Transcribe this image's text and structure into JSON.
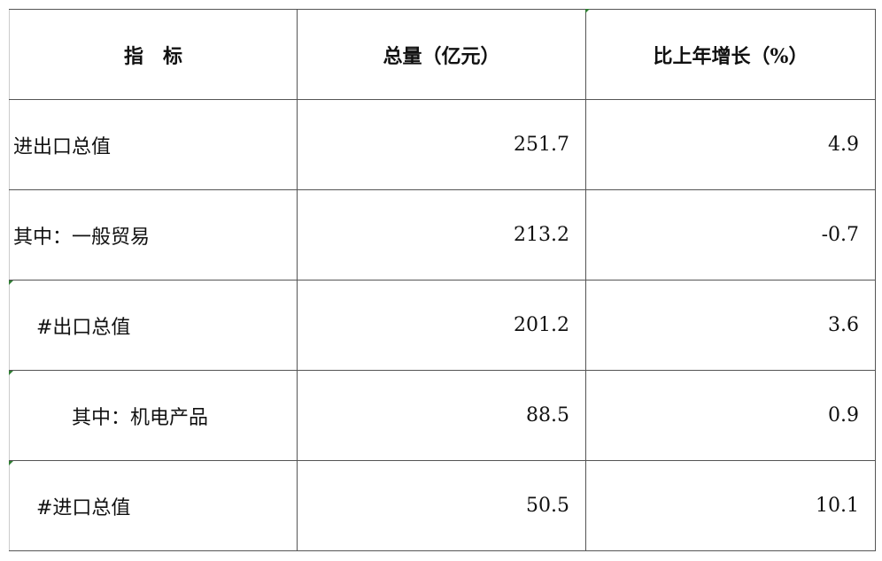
{
  "table": {
    "headers": [
      "指　标",
      "总量（亿元）",
      "比上年增长（%）"
    ],
    "rows": [
      {
        "indicator": "进出口总值",
        "total": "251.7",
        "growth": "4.9"
      },
      {
        "indicator": "其中：一般贸易",
        "total": "213.2",
        "growth": "-0.7"
      },
      {
        "indicator": "#出口总值",
        "total": "201.2",
        "growth": "3.6"
      },
      {
        "indicator": "其中：机电产品",
        "total": "88.5",
        "growth": "0.9"
      },
      {
        "indicator": "#进口总值",
        "total": "50.5",
        "growth": "10.1"
      }
    ]
  },
  "colors": {
    "cell_marker": "#2e7d32",
    "border": "#555555"
  }
}
